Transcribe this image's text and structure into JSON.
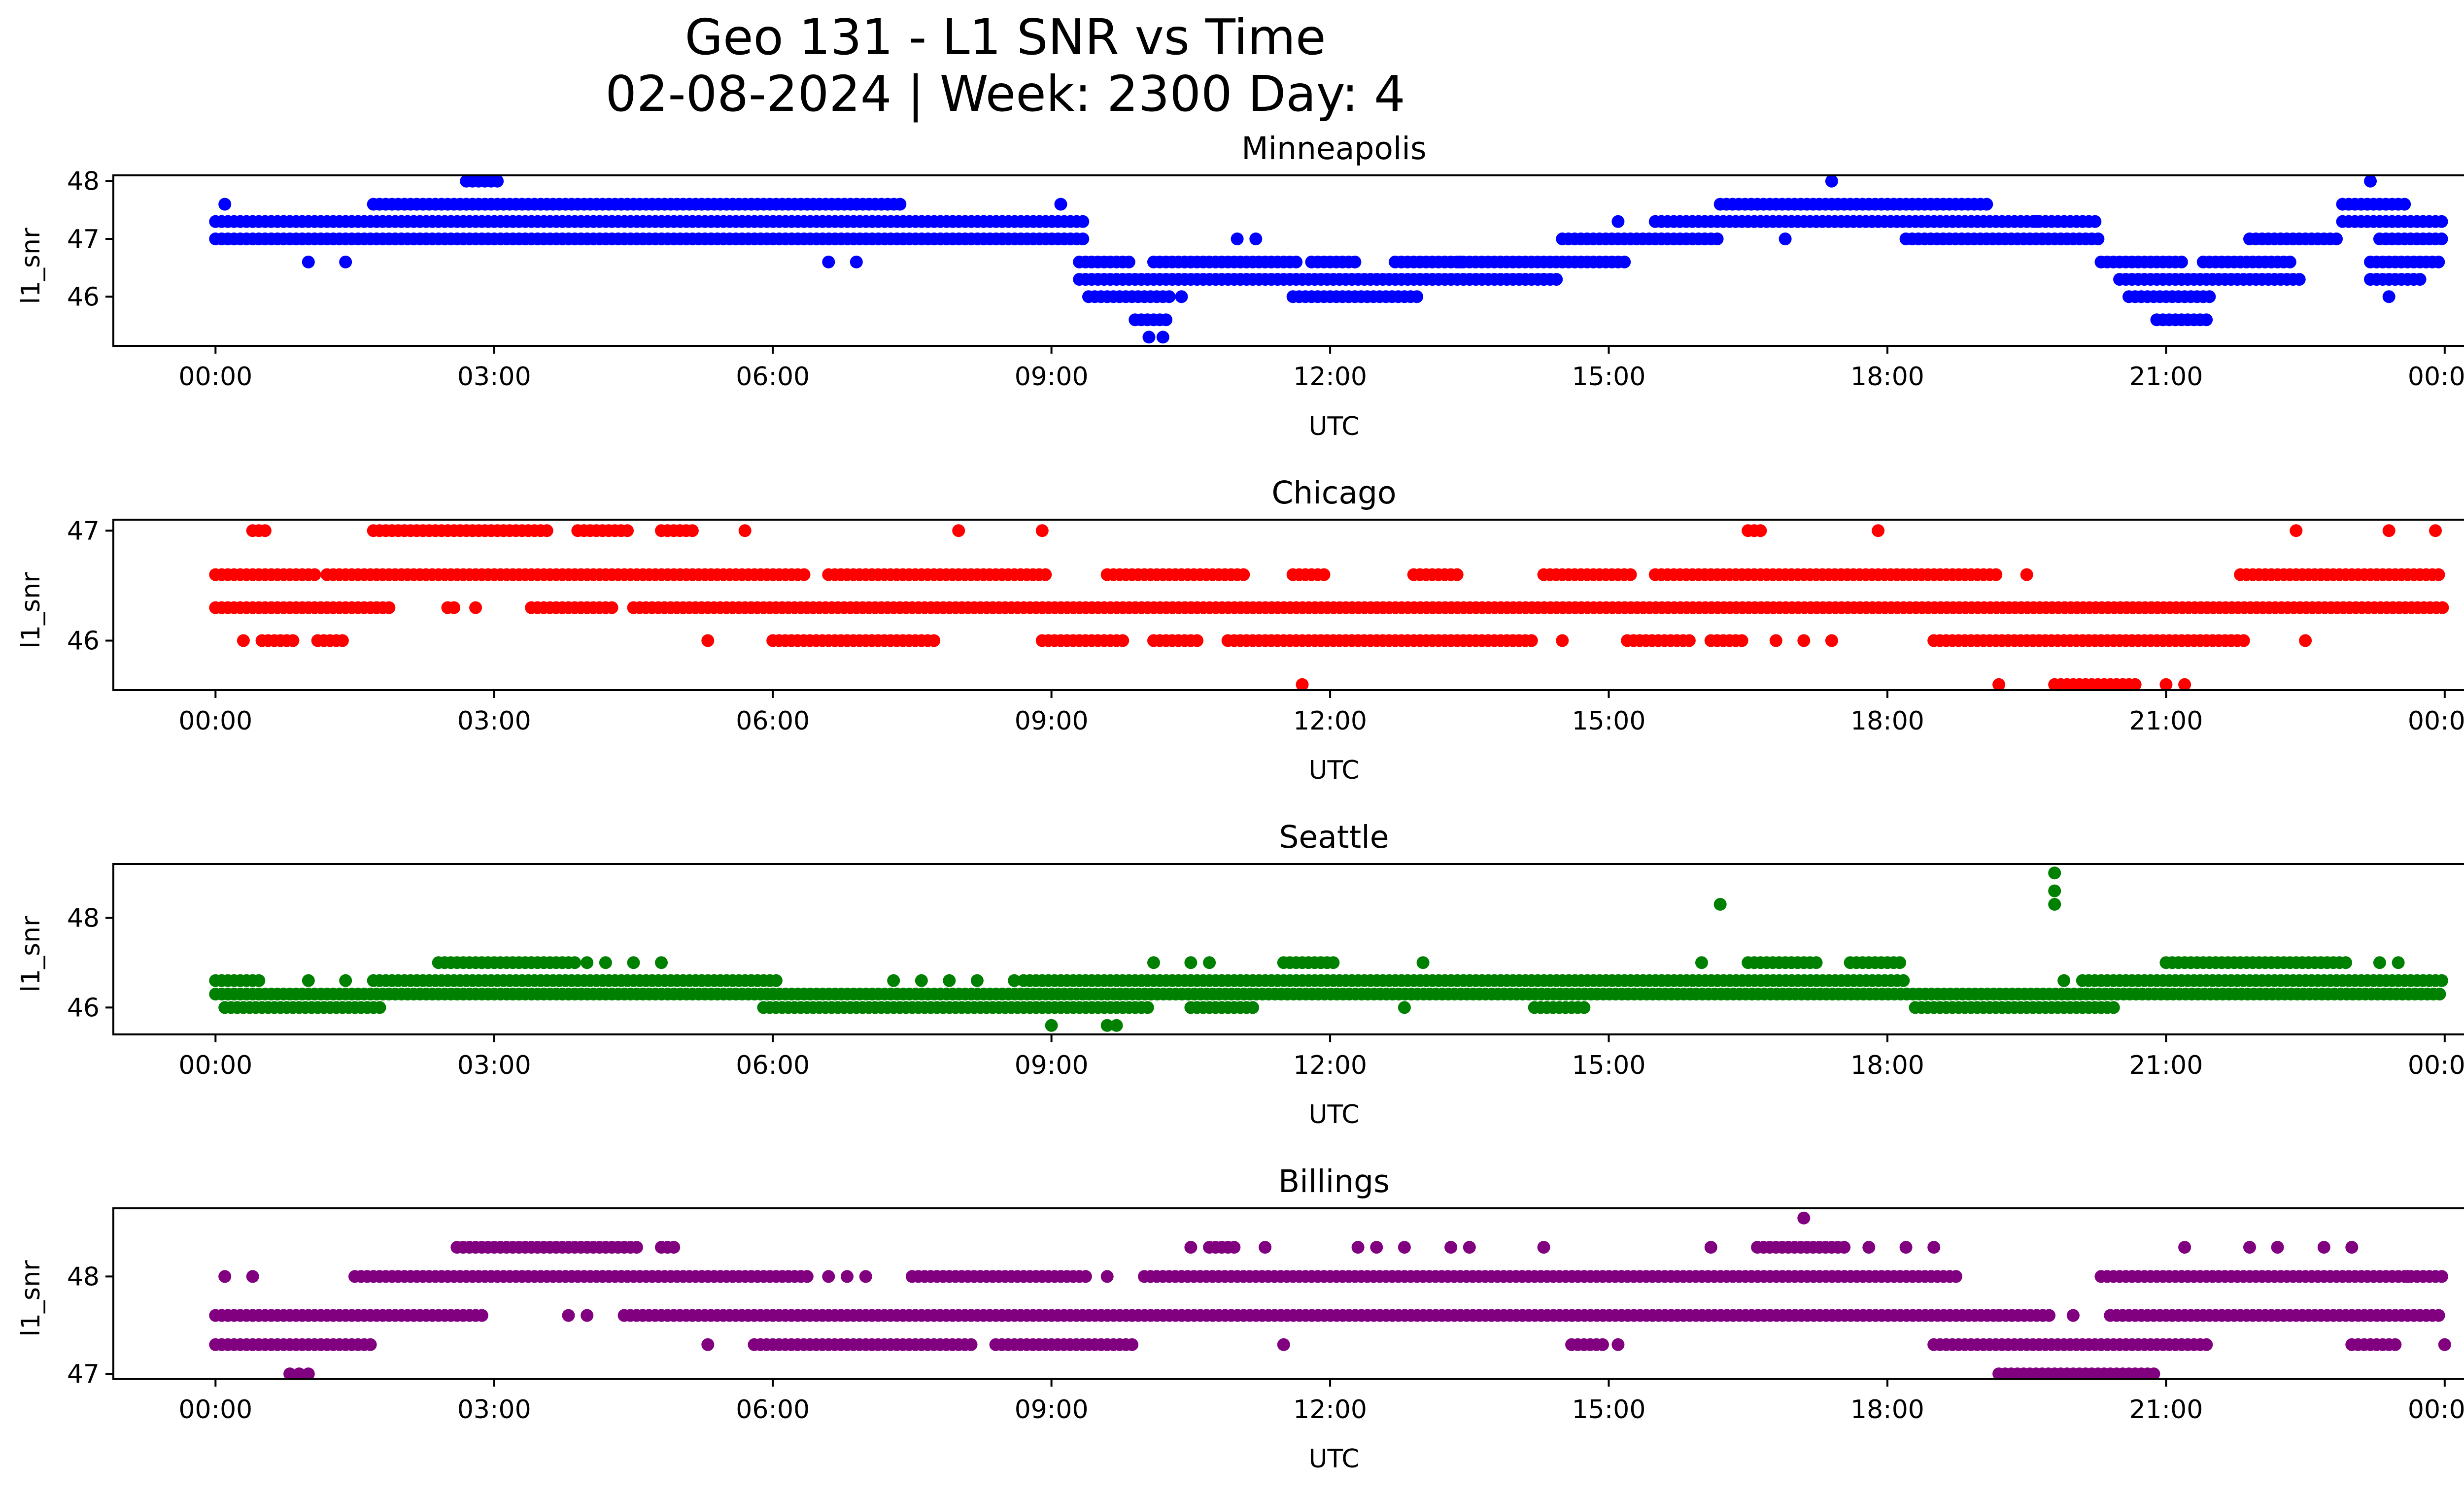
{
  "figure": {
    "title_line1": "Geo 131 - L1 SNR vs Time",
    "title_line2": "02-08-2024 | Week: 2300 Day: 4"
  },
  "chart_data": [
    {
      "type": "scatter",
      "title": "Minneapolis",
      "xlabel": "UTC",
      "ylabel": "l1_snr",
      "color": "#0000ff",
      "xlim": [
        -1.1,
        25.2
      ],
      "ylim": [
        45.15,
        48.1
      ],
      "xticks": [
        "00:00",
        "03:00",
        "06:00",
        "09:00",
        "12:00",
        "15:00",
        "18:00",
        "21:00",
        "00:00"
      ],
      "yticks": [
        46,
        47,
        48
      ],
      "bands": [
        {
          "y": 47.3,
          "segments": [
            [
              0.0,
              9.4
            ],
            [
              15.5,
              20.3
            ],
            [
              22.9,
              24.0
            ]
          ]
        },
        {
          "y": 47.0,
          "segments": [
            [
              0.0,
              9.4
            ],
            [
              14.5,
              16.2
            ],
            [
              18.2,
              20.3
            ],
            [
              21.9,
              22.9
            ],
            [
              23.3,
              24.0
            ]
          ]
        },
        {
          "y": 47.6,
          "segments": [
            [
              1.7,
              7.4
            ],
            [
              16.2,
              19.1
            ],
            [
              22.9,
              23.6
            ]
          ]
        },
        {
          "y": 46.6,
          "segments": [
            [
              9.3,
              9.9
            ],
            [
              10.1,
              11.7
            ],
            [
              11.8,
              12.3
            ],
            [
              12.7,
              15.2
            ],
            [
              20.3,
              21.2
            ],
            [
              21.4,
              22.4
            ],
            [
              23.2,
              24.0
            ]
          ]
        },
        {
          "y": 46.3,
          "segments": [
            [
              9.3,
              14.5
            ],
            [
              20.5,
              22.5
            ],
            [
              23.2,
              23.8
            ]
          ]
        },
        {
          "y": 46.0,
          "segments": [
            [
              9.4,
              10.3
            ],
            [
              11.6,
              13.0
            ],
            [
              20.6,
              21.5
            ]
          ]
        },
        {
          "y": 45.6,
          "segments": [
            [
              9.9,
              10.3
            ],
            [
              20.9,
              21.5
            ]
          ]
        },
        {
          "y": 48.0,
          "segments": [
            [
              2.7,
              3.1
            ]
          ]
        }
      ],
      "points": [
        [
          10.05,
          45.3
        ],
        [
          10.2,
          45.3
        ],
        [
          17.4,
          48.0
        ],
        [
          23.2,
          48.0
        ],
        [
          0.1,
          47.6
        ],
        [
          1.0,
          46.6
        ],
        [
          1.4,
          46.6
        ],
        [
          6.6,
          46.6
        ],
        [
          6.9,
          46.6
        ],
        [
          9.1,
          47.6
        ],
        [
          15.1,
          47.3
        ],
        [
          19.6,
          47.3
        ],
        [
          16.9,
          47.0
        ],
        [
          10.4,
          46.0
        ],
        [
          13.4,
          46.6
        ],
        [
          11.0,
          47.0
        ],
        [
          11.2,
          47.0
        ],
        [
          14.3,
          46.3
        ],
        [
          23.4,
          46.0
        ]
      ]
    },
    {
      "type": "scatter",
      "title": "Chicago",
      "xlabel": "UTC",
      "ylabel": "l1_snr",
      "color": "#ff0000",
      "xlim": [
        -1.1,
        25.2
      ],
      "ylim": [
        45.55,
        47.1
      ],
      "xticks": [
        "00:00",
        "03:00",
        "06:00",
        "09:00",
        "12:00",
        "15:00",
        "18:00",
        "21:00",
        "00:00"
      ],
      "yticks": [
        46,
        47
      ],
      "bands": [
        {
          "y": 46.3,
          "segments": [
            [
              0.0,
              1.9
            ],
            [
              4.5,
              24.0
            ],
            [
              2.5,
              2.6
            ],
            [
              3.4,
              4.3
            ]
          ]
        },
        {
          "y": 46.6,
          "segments": [
            [
              0.0,
              1.1
            ],
            [
              1.2,
              6.4
            ],
            [
              6.6,
              9.0
            ],
            [
              9.6,
              11.1
            ],
            [
              11.6,
              12.0
            ],
            [
              12.9,
              13.4
            ],
            [
              14.3,
              15.3
            ],
            [
              15.5,
              19.2
            ],
            [
              21.8,
              24.0
            ]
          ]
        },
        {
          "y": 46.0,
          "segments": [
            [
              0.5,
              0.9
            ],
            [
              1.1,
              1.4
            ],
            [
              6.0,
              7.8
            ],
            [
              8.9,
              9.8
            ],
            [
              10.1,
              10.6
            ],
            [
              10.9,
              14.2
            ],
            [
              15.2,
              15.9
            ],
            [
              16.1,
              16.5
            ],
            [
              18.5,
              21.9
            ]
          ]
        },
        {
          "y": 47.0,
          "segments": [
            [
              0.4,
              0.6
            ],
            [
              1.7,
              3.6
            ],
            [
              3.9,
              4.5
            ],
            [
              4.8,
              5.2
            ],
            [
              16.5,
              16.7
            ]
          ]
        },
        {
          "y": 45.6,
          "segments": [
            [
              19.8,
              20.7
            ]
          ]
        }
      ],
      "points": [
        [
          0.3,
          46.0
        ],
        [
          2.8,
          46.3
        ],
        [
          5.3,
          46.0
        ],
        [
          5.7,
          47.0
        ],
        [
          8.0,
          47.0
        ],
        [
          8.9,
          47.0
        ],
        [
          11.7,
          45.6
        ],
        [
          17.9,
          47.0
        ],
        [
          19.2,
          45.6
        ],
        [
          21.0,
          45.6
        ],
        [
          21.2,
          45.6
        ],
        [
          22.4,
          47.0
        ],
        [
          23.4,
          47.0
        ],
        [
          23.9,
          47.0
        ],
        [
          22.5,
          46.0
        ],
        [
          16.8,
          46.0
        ],
        [
          17.4,
          46.0
        ],
        [
          14.5,
          46.0
        ],
        [
          19.5,
          46.6
        ],
        [
          17.1,
          46.0
        ]
      ]
    },
    {
      "type": "scatter",
      "title": "Seattle",
      "xlabel": "UTC",
      "ylabel": "l1_snr",
      "color": "#008000",
      "xlim": [
        -1.1,
        25.2
      ],
      "ylim": [
        45.4,
        49.2
      ],
      "xticks": [
        "00:00",
        "03:00",
        "06:00",
        "09:00",
        "12:00",
        "15:00",
        "18:00",
        "21:00",
        "00:00"
      ],
      "yticks": [
        46,
        48
      ],
      "bands": [
        {
          "y": 46.3,
          "segments": [
            [
              0.0,
              24.0
            ]
          ]
        },
        {
          "y": 46.6,
          "segments": [
            [
              0.0,
              0.5
            ],
            [
              1.7,
              6.1
            ],
            [
              8.7,
              18.2
            ],
            [
              20.1,
              24.0
            ]
          ]
        },
        {
          "y": 46.0,
          "segments": [
            [
              0.1,
              1.8
            ],
            [
              5.9,
              10.1
            ],
            [
              10.5,
              11.2
            ],
            [
              14.2,
              14.8
            ],
            [
              18.3,
              20.5
            ]
          ]
        },
        {
          "y": 47.0,
          "segments": [
            [
              2.4,
              3.9
            ],
            [
              11.5,
              12.1
            ],
            [
              16.5,
              17.3
            ],
            [
              17.6,
              18.2
            ],
            [
              21.0,
              23.0
            ]
          ]
        }
      ],
      "points": [
        [
          16.2,
          48.3
        ],
        [
          19.8,
          49.0
        ],
        [
          19.8,
          48.6
        ],
        [
          19.8,
          48.3
        ],
        [
          9.0,
          45.6
        ],
        [
          9.6,
          45.6
        ],
        [
          9.7,
          45.6
        ],
        [
          1.0,
          46.6
        ],
        [
          1.4,
          46.6
        ],
        [
          4.0,
          47.0
        ],
        [
          4.2,
          47.0
        ],
        [
          4.5,
          47.0
        ],
        [
          4.8,
          47.0
        ],
        [
          10.1,
          47.0
        ],
        [
          10.5,
          47.0
        ],
        [
          10.7,
          47.0
        ],
        [
          13.0,
          47.0
        ],
        [
          12.8,
          46.0
        ],
        [
          16.0,
          47.0
        ],
        [
          19.9,
          46.6
        ],
        [
          23.3,
          47.0
        ],
        [
          23.5,
          47.0
        ],
        [
          7.3,
          46.6
        ],
        [
          7.6,
          46.6
        ],
        [
          7.9,
          46.6
        ],
        [
          8.2,
          46.6
        ],
        [
          8.6,
          46.6
        ]
      ]
    },
    {
      "type": "scatter",
      "title": "Billings",
      "xlabel": "UTC",
      "ylabel": "l1_snr",
      "color": "#800080",
      "xlim": [
        -1.1,
        25.2
      ],
      "ylim": [
        46.95,
        48.7
      ],
      "xticks": [
        "00:00",
        "03:00",
        "06:00",
        "09:00",
        "12:00",
        "15:00",
        "18:00",
        "21:00",
        "00:00"
      ],
      "yticks": [
        47,
        48
      ],
      "bands": [
        {
          "y": 47.6,
          "segments": [
            [
              0.0,
              2.9
            ],
            [
              4.4,
              5.0
            ],
            [
              5.0,
              19.8
            ],
            [
              20.4,
              24.0
            ]
          ]
        },
        {
          "y": 48.0,
          "segments": [
            [
              1.5,
              6.4
            ],
            [
              7.5,
              9.4
            ],
            [
              10.0,
              18.8
            ],
            [
              20.3,
              24.0
            ]
          ]
        },
        {
          "y": 47.3,
          "segments": [
            [
              0.0,
              1.7
            ],
            [
              5.8,
              8.2
            ],
            [
              8.4,
              9.9
            ],
            [
              14.6,
              15.0
            ],
            [
              18.5,
              21.5
            ],
            [
              23.0,
              23.5
            ]
          ]
        },
        {
          "y": 48.3,
          "segments": [
            [
              2.6,
              4.6
            ],
            [
              4.8,
              5.0
            ],
            [
              10.7,
              11.0
            ],
            [
              16.6,
              17.6
            ]
          ]
        },
        {
          "y": 47.0,
          "segments": [
            [
              19.2,
              20.9
            ]
          ]
        }
      ],
      "points": [
        [
          0.1,
          48.0
        ],
        [
          0.4,
          48.0
        ],
        [
          0.8,
          47.0
        ],
        [
          0.9,
          47.0
        ],
        [
          1.0,
          47.0
        ],
        [
          3.8,
          47.6
        ],
        [
          4.0,
          47.6
        ],
        [
          5.3,
          47.3
        ],
        [
          6.6,
          48.0
        ],
        [
          6.8,
          48.0
        ],
        [
          7.0,
          48.0
        ],
        [
          9.6,
          48.0
        ],
        [
          10.5,
          48.3
        ],
        [
          11.3,
          48.3
        ],
        [
          11.5,
          47.3
        ],
        [
          12.3,
          48.3
        ],
        [
          12.5,
          48.3
        ],
        [
          12.8,
          48.3
        ],
        [
          13.3,
          48.3
        ],
        [
          13.5,
          48.3
        ],
        [
          14.3,
          48.3
        ],
        [
          15.1,
          47.3
        ],
        [
          16.1,
          48.3
        ],
        [
          17.1,
          48.6
        ],
        [
          17.8,
          48.3
        ],
        [
          18.2,
          48.3
        ],
        [
          18.5,
          48.3
        ],
        [
          21.2,
          48.3
        ],
        [
          21.9,
          48.3
        ],
        [
          22.2,
          48.3
        ],
        [
          22.7,
          48.3
        ],
        [
          23.0,
          48.3
        ],
        [
          24.0,
          47.3
        ],
        [
          19.2,
          47.6
        ],
        [
          20.0,
          47.6
        ],
        [
          23.6,
          48.0
        ]
      ]
    }
  ]
}
